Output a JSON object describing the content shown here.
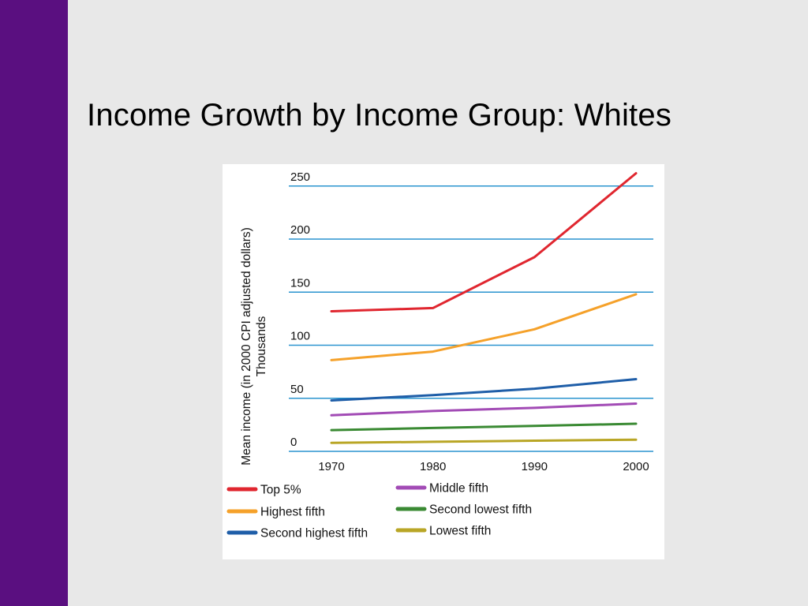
{
  "slide": {
    "title": "Income Growth by Income Group: Whites",
    "colors": {
      "sidebar": "#5a0f80",
      "background": "#e8e8e8"
    }
  },
  "chart_data": {
    "type": "line",
    "title": "",
    "ylabel_line1": "Mean income (in 2000 CPI adjusted dollars)",
    "ylabel_line2": "Thousands",
    "xlabel": "",
    "x": [
      1970,
      1980,
      1990,
      2000
    ],
    "x_ticks": [
      "1970",
      "1980",
      "1990",
      "2000"
    ],
    "y_ticks": [
      "250",
      "200",
      "150",
      "100",
      "50",
      "0"
    ],
    "ylim": [
      -10,
      260
    ],
    "grid": true,
    "legend_position": "bottom",
    "series": [
      {
        "name": "Top 5%",
        "color": "#e0262f",
        "values": [
          132,
          135,
          183,
          262
        ]
      },
      {
        "name": "Highest fifth",
        "color": "#f5a12a",
        "values": [
          86,
          94,
          115,
          148
        ]
      },
      {
        "name": "Second highest fifth",
        "color": "#1f5ea8",
        "values": [
          48,
          53,
          59,
          68
        ]
      },
      {
        "name": "Middle fifth",
        "color": "#a24bb5",
        "values": [
          34,
          38,
          41,
          45
        ]
      },
      {
        "name": "Second lowest fifth",
        "color": "#3a8a33",
        "values": [
          20,
          22,
          24,
          26
        ]
      },
      {
        "name": "Lowest fifth",
        "color": "#b9a626",
        "values": [
          8,
          9,
          10,
          11
        ]
      }
    ]
  }
}
